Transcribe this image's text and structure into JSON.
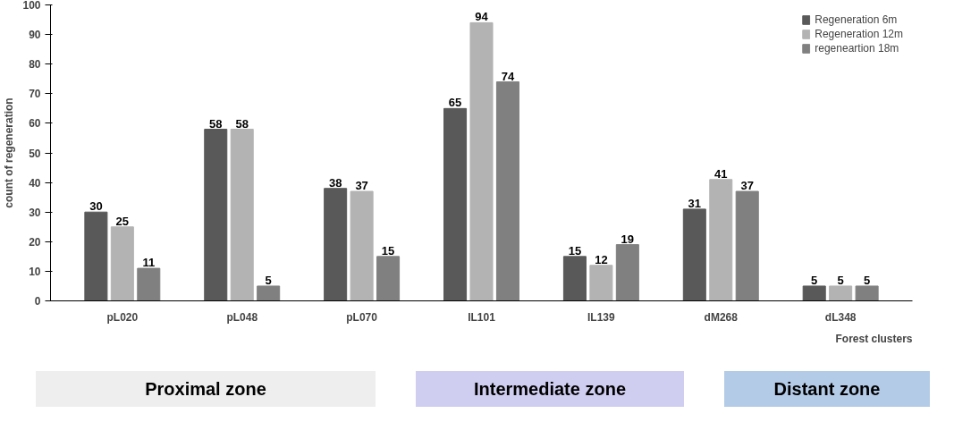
{
  "chart_data": {
    "type": "bar",
    "xlabel": "Forest clusters",
    "ylabel": "count of regeneration",
    "categories": [
      "pL020",
      "pL048",
      "pL070",
      "IL101",
      "IL139",
      "dM268",
      "dL348"
    ],
    "series": [
      {
        "name": "Regeneration 6m",
        "color": "#595959",
        "values": [
          30,
          58,
          38,
          65,
          15,
          31,
          5
        ]
      },
      {
        "name": "Regeneration 12m",
        "color": "#b3b3b3",
        "values": [
          25,
          58,
          37,
          94,
          12,
          41,
          5
        ]
      },
      {
        "name": "regeneartion 18m",
        "color": "#808080",
        "values": [
          11,
          5,
          15,
          74,
          19,
          37,
          5
        ]
      }
    ],
    "ylim": [
      0,
      100
    ],
    "yticks": [
      0,
      10,
      20,
      30,
      40,
      50,
      60,
      70,
      80,
      90,
      100
    ],
    "data_labels": true,
    "grid": false,
    "legend": "top right",
    "annotations": [
      "Proximal zone",
      "Intermediate zone",
      "Distant zone"
    ]
  }
}
